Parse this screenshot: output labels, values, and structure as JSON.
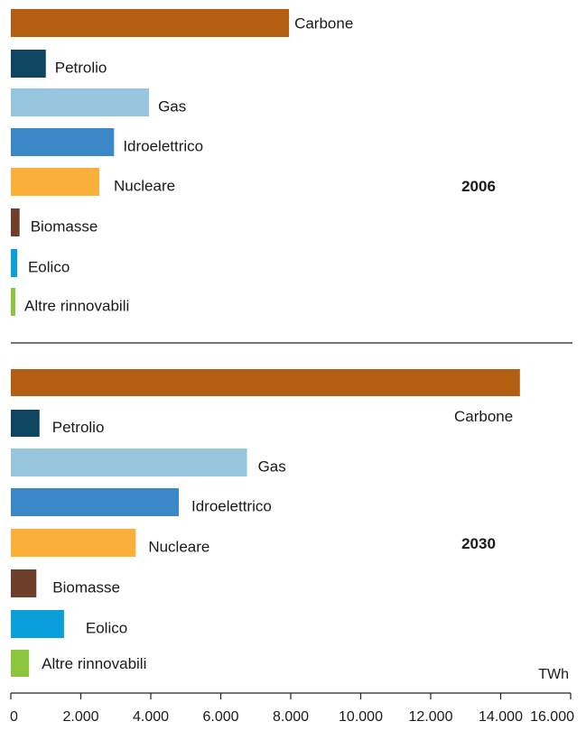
{
  "chart_data": [
    {
      "type": "bar",
      "orientation": "horizontal",
      "title": "2006",
      "categories": [
        "Carbone",
        "Petrolio",
        "Gas",
        "Idroelettrico",
        "Nucleare",
        "Biomasse",
        "Eolico",
        "Altre rinnovabili"
      ],
      "values": [
        7950,
        1000,
        3950,
        2950,
        2530,
        250,
        180,
        130
      ],
      "colors": [
        "#b45e11",
        "#0e4560",
        "#97c5de",
        "#3a88c8",
        "#fbb03b",
        "#6e3f2a",
        "#0a9fdb",
        "#8cc63f"
      ],
      "xlim": [
        0,
        16000
      ]
    },
    {
      "type": "bar",
      "orientation": "horizontal",
      "title": "2030",
      "categories": [
        "Carbone",
        "Petrolio",
        "Gas",
        "Idroelettrico",
        "Nucleare",
        "Biomasse",
        "Eolico",
        "Altre rinnovabili"
      ],
      "values": [
        14550,
        820,
        6750,
        4800,
        3570,
        730,
        1520,
        520
      ],
      "colors": [
        "#b45e11",
        "#0e4560",
        "#97c5de",
        "#3a88c8",
        "#fbb03b",
        "#6e3f2a",
        "#0a9fdb",
        "#8cc63f"
      ],
      "xlim": [
        0,
        16000
      ]
    }
  ],
  "axis": {
    "ticks": [
      0,
      2000,
      4000,
      6000,
      8000,
      10000,
      12000,
      14000,
      16000
    ],
    "tick_labels": [
      "0",
      "2.000",
      "4.000",
      "6.000",
      "8.000",
      "10.000",
      "12.000",
      "14.000",
      "16.000"
    ],
    "unit": "TWh"
  }
}
